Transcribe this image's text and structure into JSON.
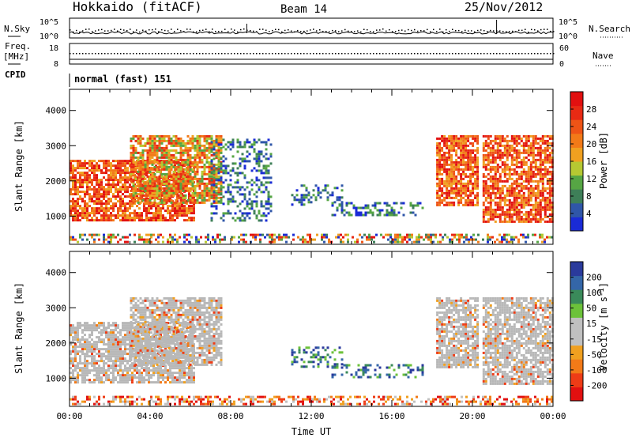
{
  "header": {
    "station": "Hokkaido (fitACF)",
    "beam": "Beam 14",
    "date": "25/Nov/2012"
  },
  "ancillary": {
    "nsky_label": "N.Sky",
    "nsearch_label": "N.Search",
    "freq_label_1": "Freq.",
    "freq_label_2": "[MHz]",
    "nave_label": "Nave",
    "cpid_label": "CPID",
    "noise_ticks": [
      "10^5",
      "10^0"
    ],
    "freq_ticks": [
      "18",
      "8"
    ],
    "nave_ticks": [
      "60",
      "0"
    ],
    "cpid_value": "normal (fast) 151"
  },
  "colors": {
    "power_scale": [
      "#1a2bd6",
      "#2f56a8",
      "#3e7f58",
      "#56a644",
      "#b6c832",
      "#f0a020",
      "#f27a18",
      "#ee5416",
      "#e82a14",
      "#e21010"
    ],
    "velocity_scale": [
      "#2a3a9c",
      "#3466a8",
      "#3a8a5a",
      "#6cc23a",
      "#c0c0c0",
      "#c0c0c0",
      "#f0a020",
      "#f27a18",
      "#ee3c16",
      "#e21010"
    ],
    "velocity_fg": "#b8b8b8"
  },
  "chart_data": [
    {
      "type": "heatmap",
      "title": "Power",
      "xlabel": "Time UT",
      "ylabel": "Slant Range [km]",
      "xlim": [
        0,
        24
      ],
      "ylim": [
        200,
        4600
      ],
      "x_ticks": [
        "00:00",
        "04:00",
        "08:00",
        "12:00",
        "16:00",
        "20:00",
        "00:00"
      ],
      "y_ticks": [
        "1000",
        "2000",
        "3000",
        "4000"
      ],
      "colorbar_label": "Power [dB]",
      "colorbar_ticks": [
        "4",
        "8",
        "12",
        "16",
        "20",
        "24",
        "28"
      ],
      "colorbar_range": [
        0,
        30
      ],
      "echo_regions": [
        {
          "t0": 0.0,
          "t1": 6.2,
          "r0": 850,
          "r1": 2600,
          "level": "high"
        },
        {
          "t0": 3.0,
          "t1": 7.5,
          "r0": 1400,
          "r1": 3300,
          "level": "medium"
        },
        {
          "t0": 7.0,
          "t1": 10.0,
          "r0": 900,
          "r1": 3200,
          "level": "low"
        },
        {
          "t0": 11.0,
          "t1": 13.5,
          "r0": 1300,
          "r1": 1900,
          "level": "low"
        },
        {
          "t0": 13.0,
          "t1": 17.5,
          "r0": 1000,
          "r1": 1400,
          "level": "low"
        },
        {
          "t0": 18.2,
          "t1": 20.2,
          "r0": 1300,
          "r1": 3300,
          "level": "high"
        },
        {
          "t0": 20.5,
          "t1": 24.0,
          "r0": 850,
          "r1": 3300,
          "level": "high"
        },
        {
          "t0": 0.0,
          "t1": 24.0,
          "r0": 250,
          "r1": 500,
          "level": "ground"
        }
      ]
    },
    {
      "type": "heatmap",
      "title": "Velocity",
      "xlabel": "Time UT",
      "ylabel": "Slant Range [km]",
      "xlim": [
        0,
        24
      ],
      "ylim": [
        200,
        4600
      ],
      "x_ticks": [
        "00:00",
        "04:00",
        "08:00",
        "12:00",
        "16:00",
        "20:00",
        "00:00"
      ],
      "y_ticks": [
        "1000",
        "2000",
        "3000",
        "4000"
      ],
      "colorbar_label": "Velocity [m s^-1]",
      "colorbar_ticks": [
        "200",
        "100",
        "50",
        "15",
        "-15",
        "-50",
        "-100",
        "-200"
      ],
      "colorbar_range": [
        -250,
        250
      ],
      "echo_regions": [
        {
          "t0": 0.0,
          "t1": 6.2,
          "r0": 850,
          "r1": 2600,
          "level": "near-zero"
        },
        {
          "t0": 3.0,
          "t1": 7.5,
          "r0": 1400,
          "r1": 3300,
          "level": "near-zero"
        },
        {
          "t0": 11.0,
          "t1": 13.5,
          "r0": 1300,
          "r1": 1900,
          "level": "positive"
        },
        {
          "t0": 13.0,
          "t1": 17.5,
          "r0": 1000,
          "r1": 1400,
          "level": "positive"
        },
        {
          "t0": 18.2,
          "t1": 20.2,
          "r0": 1300,
          "r1": 3300,
          "level": "near-zero"
        },
        {
          "t0": 20.5,
          "t1": 24.0,
          "r0": 850,
          "r1": 3300,
          "level": "near-zero"
        },
        {
          "t0": 0.0,
          "t1": 24.0,
          "r0": 250,
          "r1": 500,
          "level": "negative"
        }
      ]
    }
  ]
}
